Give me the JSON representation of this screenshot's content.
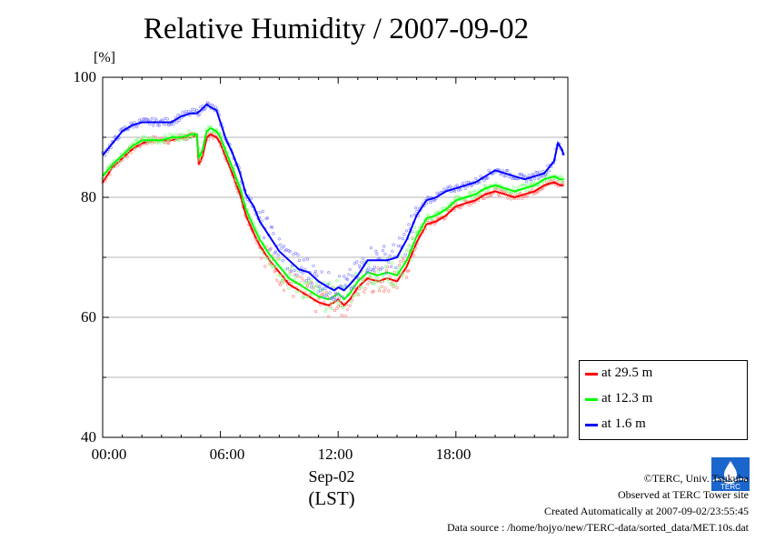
{
  "title": "Relative Humidity / 2007-09-02",
  "credits": [
    "©TERC, Univ. Tsukuba",
    "Observed at TERC Tower site",
    "Created Automatically at 2007-09-02/23:55:45",
    "Data source : /home/hojyo/new/TERC-data/sorted_data/MET.10s.dat"
  ],
  "logo_text": "TERC",
  "chart_data": {
    "type": "line",
    "title": "Relative Humidity / 2007-09-02",
    "ylabel": "[%]",
    "xlabel_date": "Sep-02",
    "xlabel_unit": "(LST)",
    "ylim": [
      40,
      100
    ],
    "xlim": [
      0,
      23.5
    ],
    "yticks": [
      40,
      60,
      80,
      100
    ],
    "xticks": [
      0,
      6,
      12,
      18
    ],
    "xtick_labels": [
      "00:00",
      "06:00",
      "12:00",
      "18:00"
    ],
    "grid": true,
    "legend_position": "right-bottom",
    "series": [
      {
        "name": "at 29.5 m",
        "color": "#ff0000",
        "x": [
          0,
          0.5,
          1,
          1.5,
          2,
          2.5,
          3,
          3.5,
          4,
          4.5,
          4.8,
          4.9,
          5.1,
          5.3,
          5.5,
          5.8,
          6,
          6.3,
          6.6,
          7,
          7.3,
          7.7,
          8,
          8.5,
          9,
          9.5,
          10,
          10.5,
          11,
          11.5,
          11.8,
          12,
          12.3,
          12.6,
          13,
          13.5,
          14,
          14.5,
          15,
          15.5,
          16,
          16.5,
          17,
          17.5,
          18,
          18.5,
          19,
          19.5,
          20,
          20.5,
          21,
          21.5,
          22,
          22.5,
          23,
          23.3,
          23.5
        ],
        "y": [
          82.5,
          85,
          86.5,
          88,
          89,
          89.5,
          89.5,
          89.5,
          90,
          90,
          90.3,
          85.5,
          87,
          90,
          90.5,
          90,
          89,
          86.5,
          84,
          80.5,
          77,
          74,
          72,
          69.5,
          67.5,
          65.5,
          64.5,
          63.5,
          62.5,
          62,
          62.5,
          63,
          62,
          63,
          65,
          66.5,
          66,
          66.5,
          66,
          68.5,
          72.5,
          75.5,
          76,
          77,
          78.5,
          79,
          79.5,
          80.5,
          81,
          80.5,
          80,
          80.5,
          81,
          82,
          82.5,
          82,
          82
        ]
      },
      {
        "name": "at 12.3 m",
        "color": "#00ff00",
        "x": [
          0,
          0.5,
          1,
          1.5,
          2,
          2.5,
          3,
          3.5,
          4,
          4.5,
          4.8,
          4.9,
          5.1,
          5.3,
          5.5,
          5.8,
          6,
          6.3,
          6.6,
          7,
          7.3,
          7.7,
          8,
          8.5,
          9,
          9.5,
          10,
          10.5,
          11,
          11.5,
          11.8,
          12,
          12.3,
          12.6,
          13,
          13.5,
          14,
          14.5,
          15,
          15.5,
          16,
          16.5,
          17,
          17.5,
          18,
          18.5,
          19,
          19.5,
          20,
          20.5,
          21,
          21.5,
          22,
          22.5,
          23,
          23.3,
          23.5
        ],
        "y": [
          83.5,
          85.5,
          87,
          88.5,
          89.5,
          89.5,
          89.5,
          90,
          90,
          90.5,
          90.5,
          86.5,
          88,
          91,
          91.5,
          91,
          90,
          87.5,
          85,
          81.5,
          78,
          75,
          73,
          70.5,
          68.5,
          66.5,
          65.5,
          64.5,
          63.5,
          63,
          63.5,
          64,
          63,
          64,
          66,
          67.5,
          67,
          67.5,
          67,
          69.5,
          73.5,
          76.5,
          77,
          78,
          79.5,
          80,
          80.5,
          81.5,
          82,
          81.5,
          81,
          81.5,
          82,
          83,
          83.5,
          83,
          83
        ]
      },
      {
        "name": "at 1.6 m",
        "color": "#0000ff",
        "x": [
          0,
          0.5,
          1,
          1.5,
          2,
          2.5,
          3,
          3.5,
          4,
          4.5,
          4.8,
          5,
          5.3,
          5.5,
          5.8,
          6,
          6.3,
          6.6,
          7,
          7.3,
          7.7,
          8,
          8.5,
          9,
          9.5,
          10,
          10.5,
          11,
          11.5,
          11.8,
          12,
          12.3,
          12.6,
          13,
          13.5,
          14,
          14.5,
          15,
          15.5,
          16,
          16.5,
          17,
          17.5,
          18,
          18.5,
          19,
          19.5,
          20,
          20.5,
          21,
          21.5,
          22,
          22.5,
          23,
          23.2,
          23.4,
          23.5
        ],
        "y": [
          87,
          89,
          91,
          92,
          92.5,
          92.5,
          92.5,
          92.5,
          93.5,
          94,
          94,
          94.5,
          95.5,
          95,
          94.5,
          92.5,
          89.5,
          87.5,
          84,
          80.5,
          78.5,
          76,
          73.5,
          71,
          69.5,
          68,
          67.5,
          66,
          65,
          64.5,
          65,
          64.5,
          65.5,
          67,
          69.5,
          69.5,
          69.5,
          70,
          73,
          77,
          79.5,
          80,
          81,
          81.5,
          82,
          82.5,
          83.5,
          84.5,
          84,
          83.5,
          83,
          83.5,
          84,
          86,
          89,
          88,
          87
        ]
      }
    ]
  }
}
